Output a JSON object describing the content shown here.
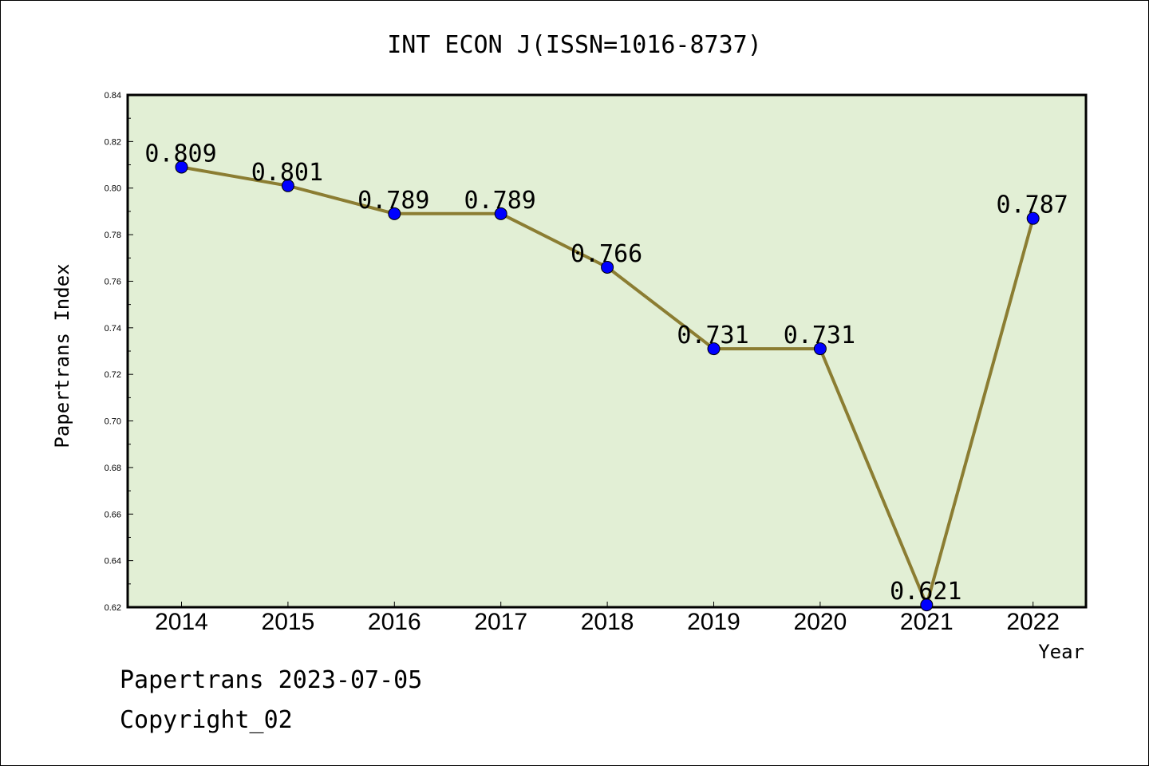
{
  "chart_data": {
    "type": "line",
    "title": "INT ECON J(ISSN=1016-8737)",
    "xlabel": "Year",
    "ylabel": "Papertrans Index",
    "categories": [
      "2014",
      "2015",
      "2016",
      "2017",
      "2018",
      "2019",
      "2020",
      "2021",
      "2022"
    ],
    "series": [
      {
        "values": [
          0.809,
          0.801,
          0.789,
          0.789,
          0.766,
          0.731,
          0.731,
          0.621,
          0.787
        ]
      }
    ],
    "data_labels": [
      "0.809",
      "0.801",
      "0.789",
      "0.789",
      "0.766",
      "0.731",
      "0.731",
      "0.621",
      "0.787"
    ],
    "ylim": [
      0.62,
      0.84
    ],
    "yticks": [
      "0.62",
      "0.64",
      "0.66",
      "0.68",
      "0.70",
      "0.72",
      "0.74",
      "0.76",
      "0.78",
      "0.80",
      "0.82",
      "0.84"
    ],
    "grid": false,
    "colors": {
      "plot_bg": "#e2efd5",
      "line": "#8b7d32",
      "marker": "#0000ff"
    }
  },
  "footer": {
    "line1": "Papertrans 2023-07-05",
    "line2": "Copyright_02"
  }
}
